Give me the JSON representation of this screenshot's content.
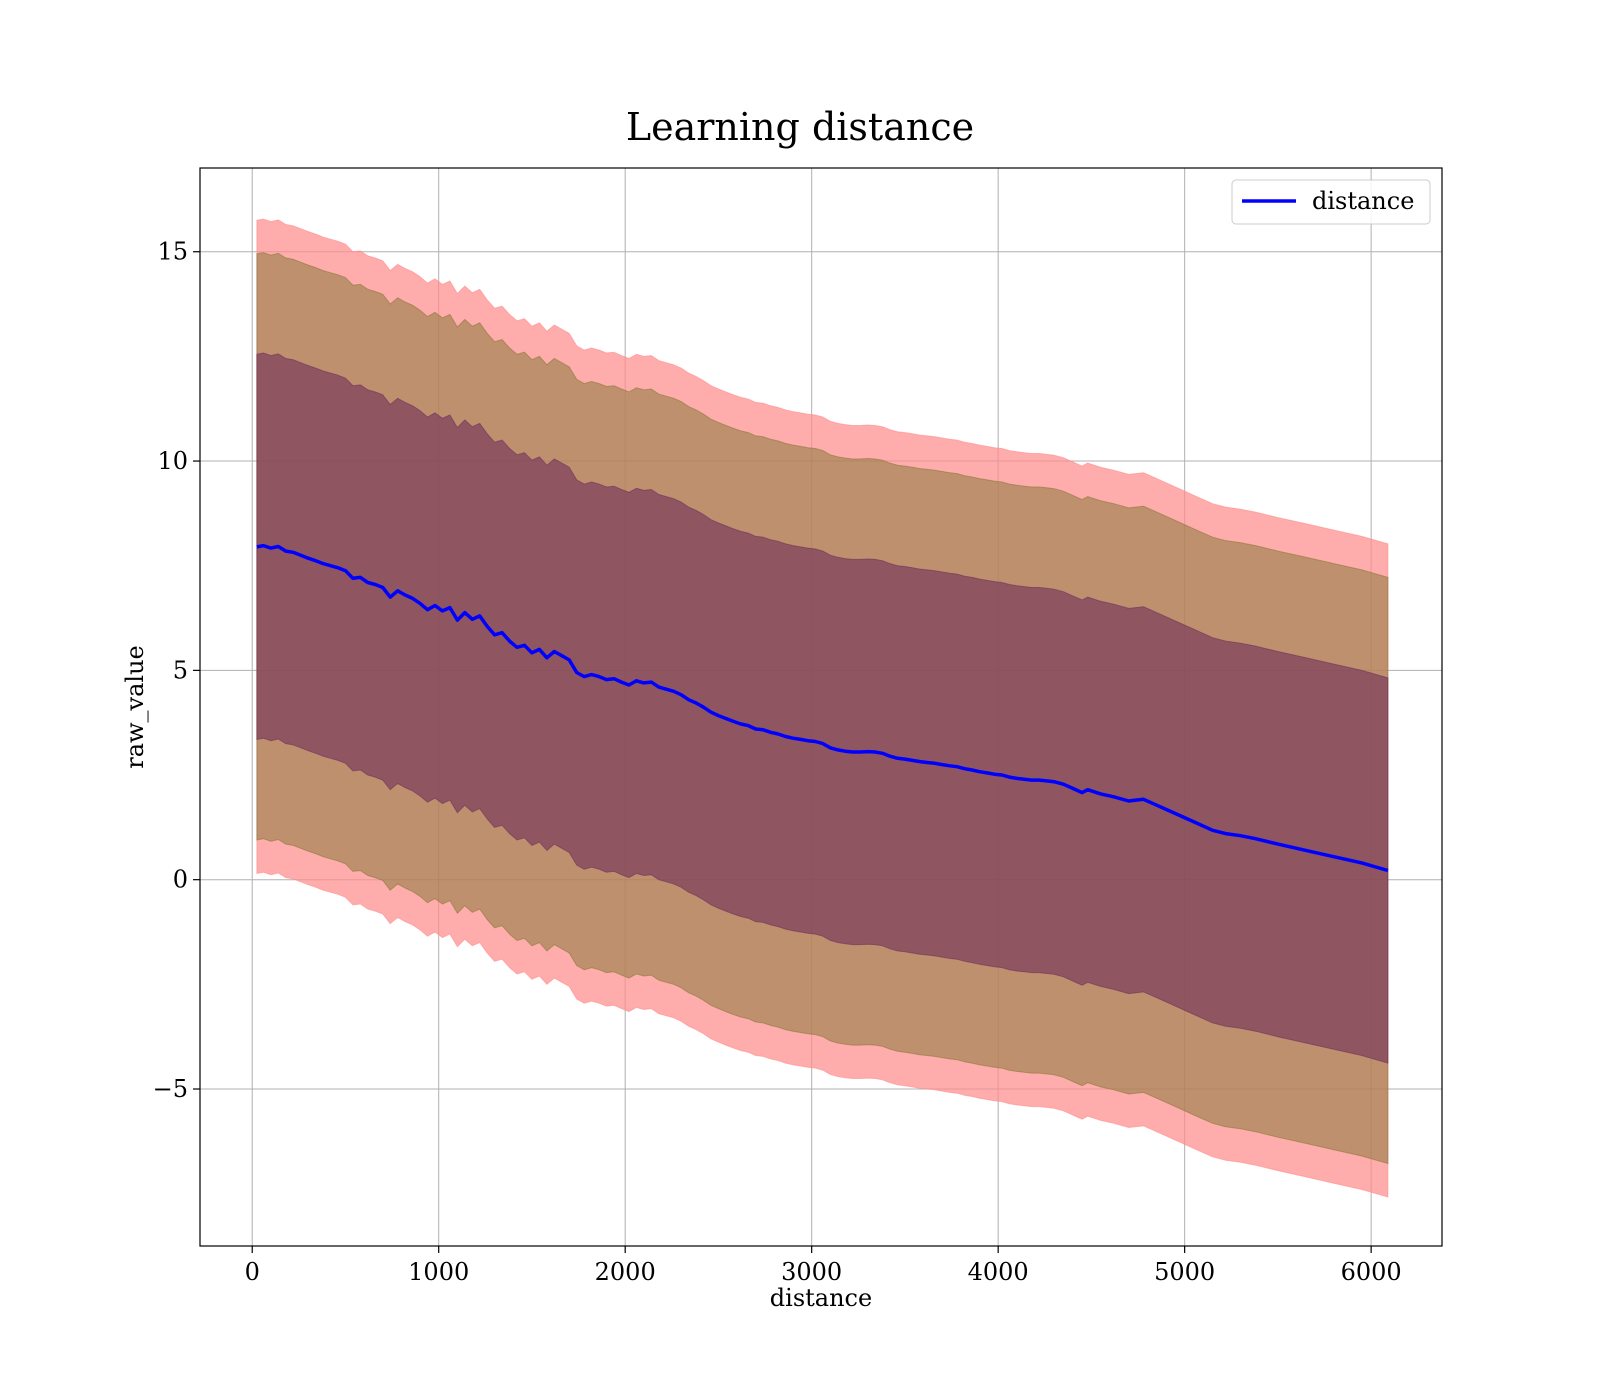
{
  "chart_data": {
    "type": "line",
    "title": "Learning distance",
    "xlabel": "distance",
    "ylabel": "raw_value",
    "xlim": [
      -280,
      6380
    ],
    "ylim": [
      -8.75,
      17
    ],
    "xticks": [
      0,
      1000,
      2000,
      3000,
      4000,
      5000,
      6000
    ],
    "yticks": [
      -5,
      0,
      5,
      10,
      15
    ],
    "xtick_labels": [
      "0",
      "1000",
      "2000",
      "3000",
      "4000",
      "5000",
      "6000"
    ],
    "ytick_labels": [
      "−5",
      "0",
      "5",
      "10",
      "15"
    ],
    "grid": true,
    "legend": {
      "placement": "upper-right",
      "entries": [
        "distance"
      ]
    },
    "band_spreads": [
      7.8,
      7.0,
      4.6
    ],
    "colors": {
      "line": "#0000ff",
      "outer_band": "#ff8c8c",
      "middle_band": "#8b7a3a",
      "inner_band": "#70315b",
      "grid": "#b0b0b0"
    },
    "series": [
      {
        "name": "distance",
        "x": [
          25,
          60,
          100,
          140,
          180,
          220,
          260,
          300,
          340,
          380,
          420,
          460,
          500,
          540,
          580,
          620,
          660,
          700,
          740,
          780,
          820,
          860,
          900,
          940,
          980,
          1020,
          1060,
          1100,
          1140,
          1180,
          1220,
          1260,
          1300,
          1340,
          1380,
          1420,
          1460,
          1500,
          1540,
          1580,
          1620,
          1660,
          1700,
          1740,
          1780,
          1820,
          1860,
          1900,
          1940,
          1980,
          2020,
          2060,
          2100,
          2140,
          2180,
          2220,
          2260,
          2300,
          2340,
          2380,
          2420,
          2460,
          2500,
          2540,
          2580,
          2620,
          2660,
          2700,
          2740,
          2780,
          2820,
          2860,
          2900,
          2940,
          2980,
          3020,
          3060,
          3100,
          3140,
          3180,
          3220,
          3260,
          3300,
          3340,
          3380,
          3420,
          3460,
          3500,
          3540,
          3580,
          3620,
          3660,
          3700,
          3740,
          3780,
          3820,
          3860,
          3900,
          3940,
          3980,
          4020,
          4060,
          4100,
          4140,
          4180,
          4220,
          4260,
          4300,
          4350,
          4400,
          4450,
          4480,
          4550,
          4620,
          4700,
          4780,
          4850,
          4950,
          5050,
          5150,
          5220,
          5300,
          5380,
          5500,
          5650,
          5800,
          5950,
          6090
        ],
        "y": [
          7.95,
          7.98,
          7.92,
          7.96,
          7.85,
          7.82,
          7.75,
          7.68,
          7.62,
          7.55,
          7.5,
          7.45,
          7.38,
          7.2,
          7.22,
          7.1,
          7.05,
          6.98,
          6.75,
          6.9,
          6.8,
          6.72,
          6.6,
          6.45,
          6.55,
          6.42,
          6.5,
          6.2,
          6.38,
          6.22,
          6.3,
          6.05,
          5.85,
          5.9,
          5.7,
          5.55,
          5.6,
          5.42,
          5.5,
          5.3,
          5.45,
          5.35,
          5.25,
          4.95,
          4.85,
          4.9,
          4.85,
          4.78,
          4.8,
          4.72,
          4.65,
          4.75,
          4.7,
          4.72,
          4.6,
          4.55,
          4.5,
          4.42,
          4.3,
          4.22,
          4.12,
          4.0,
          3.92,
          3.85,
          3.78,
          3.72,
          3.68,
          3.6,
          3.58,
          3.52,
          3.48,
          3.42,
          3.38,
          3.35,
          3.32,
          3.3,
          3.25,
          3.15,
          3.1,
          3.07,
          3.05,
          3.05,
          3.06,
          3.05,
          3.02,
          2.95,
          2.9,
          2.88,
          2.85,
          2.82,
          2.8,
          2.78,
          2.75,
          2.72,
          2.7,
          2.65,
          2.62,
          2.58,
          2.55,
          2.52,
          2.5,
          2.45,
          2.42,
          2.4,
          2.38,
          2.38,
          2.36,
          2.34,
          2.28,
          2.18,
          2.08,
          2.15,
          2.05,
          1.98,
          1.88,
          1.92,
          1.78,
          1.58,
          1.38,
          1.18,
          1.1,
          1.05,
          0.98,
          0.85,
          0.7,
          0.55,
          0.4,
          0.22
        ]
      }
    ]
  }
}
